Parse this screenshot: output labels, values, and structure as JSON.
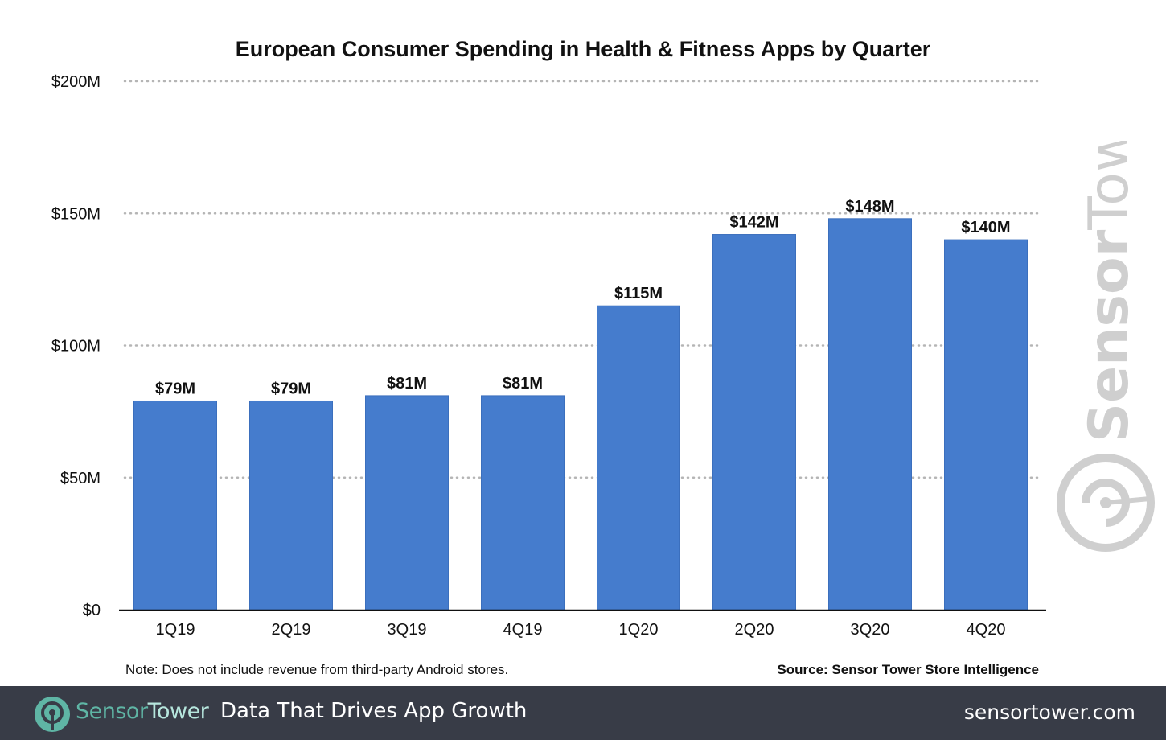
{
  "chart_data": {
    "type": "bar",
    "title": "European Consumer Spending in Health & Fitness Apps by Quarter",
    "categories": [
      "1Q19",
      "2Q19",
      "3Q19",
      "4Q19",
      "1Q20",
      "2Q20",
      "3Q20",
      "4Q20"
    ],
    "values": [
      79,
      79,
      81,
      81,
      115,
      142,
      148,
      140
    ],
    "data_labels": [
      "$79M",
      "$79M",
      "$81M",
      "$81M",
      "$115M",
      "$142M",
      "$148M",
      "$140M"
    ],
    "unit": "$M",
    "ylim": [
      0,
      200
    ],
    "yticks": [
      0,
      50,
      100,
      150,
      200
    ],
    "ytick_labels": [
      "$0",
      "$50M",
      "$100M",
      "$150M",
      "$200M"
    ],
    "xlabel": "",
    "ylabel": "",
    "grid": "horizontal dotted",
    "bar_color": "#457ccd"
  },
  "note": "Note: Does not include revenue from third-party Android stores.",
  "source": "Source: Sensor Tower Store Intelligence",
  "watermark": "SensorTower",
  "footer": {
    "brand_a": "Sensor",
    "brand_b": "Tower",
    "tagline": "Data That Drives App Growth",
    "site": "sensortower.com",
    "bg_color": "#383c47",
    "brand_color": "#5fb5a5"
  }
}
